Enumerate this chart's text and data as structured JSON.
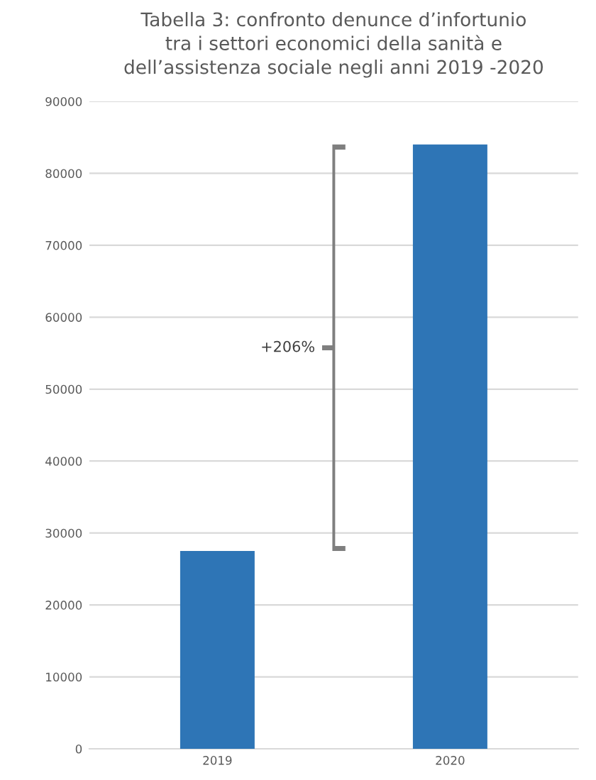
{
  "chart_data": {
    "type": "bar",
    "title": "Tabella 3: confronto denunce d’infortunio\ntra i settori economici della sanità e\ndell’assistenza sociale negli anni 2019 -2020",
    "categories": [
      "2019",
      "2020"
    ],
    "values": [
      27500,
      84000
    ],
    "color": "#2e75b6",
    "ylim": [
      0,
      90000
    ],
    "yticks": [
      0,
      10000,
      20000,
      30000,
      40000,
      50000,
      60000,
      70000,
      80000,
      90000
    ],
    "grid": "y",
    "annotations": [
      "+206%"
    ]
  }
}
